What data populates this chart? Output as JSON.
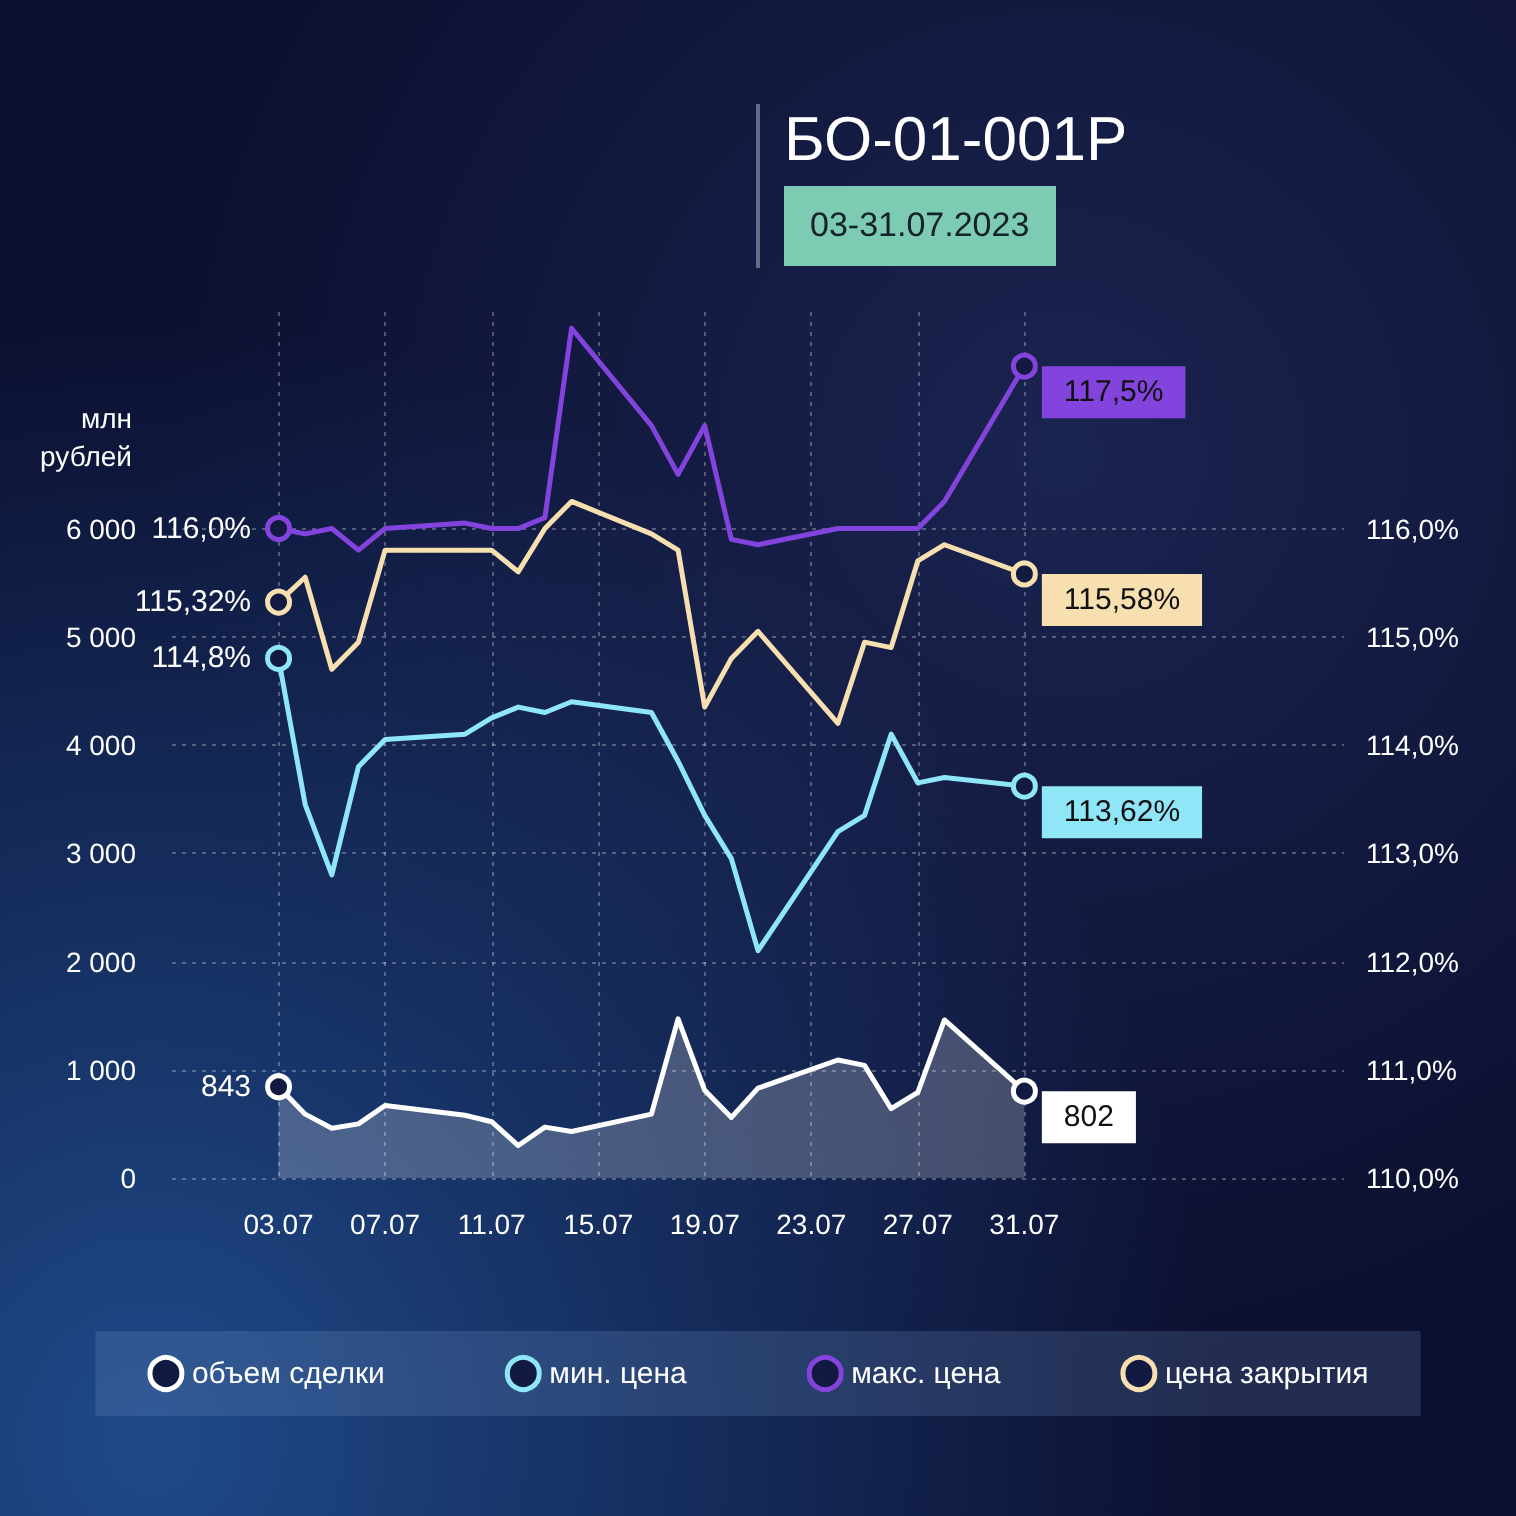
{
  "chart_data": {
    "type": "line",
    "title": "БО-01-001P",
    "subtitle": "03-31.07.2023",
    "ylabel": "млн рублей",
    "x": [
      "2023-07-03",
      "2023-07-04",
      "2023-07-05",
      "2023-07-06",
      "2023-07-07",
      "2023-07-10",
      "2023-07-11",
      "2023-07-12",
      "2023-07-13",
      "2023-07-14",
      "2023-07-17",
      "2023-07-18",
      "2023-07-19",
      "2023-07-20",
      "2023-07-21",
      "2023-07-24",
      "2023-07-25",
      "2023-07-26",
      "2023-07-27",
      "2023-07-28",
      "2023-07-31"
    ],
    "series": [
      {
        "name": "объем сделки",
        "type": "area",
        "color": "#ffffff",
        "values": [
          843,
          590,
          460,
          500,
          670,
          580,
          520,
          300,
          470,
          430,
          590,
          1470,
          810,
          560,
          830,
          1090,
          1040,
          640,
          790,
          1460,
          802
        ],
        "value_labels": [
          "843",
          null,
          null,
          null,
          null,
          null,
          null,
          null,
          null,
          null,
          null,
          null,
          null,
          null,
          null,
          null,
          null,
          null,
          null,
          null,
          "802"
        ]
      },
      {
        "name": "мин. цена",
        "axis": "y2",
        "color": "#8ee6f7",
        "values": [
          114.8,
          113.45,
          112.8,
          113.8,
          114.05,
          114.1,
          114.25,
          114.35,
          114.3,
          114.4,
          114.3,
          113.85,
          113.35,
          112.95,
          112.1,
          113.2,
          113.35,
          114.1,
          113.65,
          113.7,
          113.62
        ],
        "value_labels": [
          "114,8%",
          null,
          null,
          null,
          null,
          null,
          null,
          null,
          null,
          null,
          null,
          null,
          null,
          null,
          null,
          null,
          null,
          null,
          null,
          null,
          "113,62%"
        ]
      },
      {
        "name": "макс. цена",
        "axis": "y2",
        "color": "#8244dc",
        "values": [
          116.0,
          115.95,
          116.0,
          115.8,
          116.0,
          116.05,
          116.0,
          116.0,
          116.1,
          117.85,
          116.95,
          116.5,
          116.95,
          115.9,
          115.85,
          116.0,
          116.0,
          116.0,
          116.0,
          116.25,
          117.5
        ],
        "value_labels": [
          "116,0%",
          null,
          null,
          null,
          null,
          null,
          null,
          null,
          null,
          null,
          null,
          null,
          null,
          null,
          null,
          null,
          null,
          null,
          null,
          null,
          "117,5%"
        ]
      },
      {
        "name": "цена закрытия",
        "axis": "y2",
        "color": "#f7dfb0",
        "values": [
          115.32,
          115.55,
          114.7,
          114.95,
          115.8,
          115.8,
          115.8,
          115.6,
          116.0,
          116.25,
          115.95,
          115.8,
          114.35,
          114.8,
          115.05,
          114.2,
          114.95,
          114.9,
          115.7,
          115.85,
          115.58
        ],
        "value_labels": [
          "115,32%",
          null,
          null,
          null,
          null,
          null,
          null,
          null,
          null,
          null,
          null,
          null,
          null,
          null,
          null,
          null,
          null,
          null,
          null,
          null,
          "115,58%"
        ]
      }
    ],
    "xlim": [
      "2023-06-29",
      "2023-08-12"
    ],
    "xticks": [
      {
        "value": "2023-07-03",
        "label": "03.07"
      },
      {
        "value": "2023-07-07",
        "label": "07.07"
      },
      {
        "value": "2023-07-11",
        "label": "11.07"
      },
      {
        "value": "2023-07-15",
        "label": "15.07"
      },
      {
        "value": "2023-07-19",
        "label": "19.07"
      },
      {
        "value": "2023-07-23",
        "label": "23.07"
      },
      {
        "value": "2023-07-27",
        "label": "27.07"
      },
      {
        "value": "2023-07-31",
        "label": "31.07"
      }
    ],
    "ylim": [
      0,
      8000
    ],
    "yticks": [
      0,
      {
        "value": 1000,
        "label": "1 000"
      },
      {
        "value": 2000,
        "label": "2 000"
      },
      {
        "value": 3000,
        "label": "3 000"
      },
      {
        "value": 4000,
        "label": "4 000"
      },
      {
        "value": 5000,
        "label": "5 000"
      },
      {
        "value": 6000,
        "label": "6 000"
      }
    ],
    "y2lim": [
      110,
      118
    ],
    "y2ticks": [
      {
        "value": 110,
        "label": "110,0%"
      },
      {
        "value": 111,
        "label": "111,0%"
      },
      {
        "value": 112,
        "label": "112,0%"
      },
      {
        "value": 113,
        "label": "113,0%"
      },
      {
        "value": 114,
        "label": "114,0%"
      },
      {
        "value": 115,
        "label": "115,0%"
      },
      {
        "value": 116,
        "label": "116,0%"
      }
    ],
    "grid": true,
    "legend": "bottom"
  }
}
